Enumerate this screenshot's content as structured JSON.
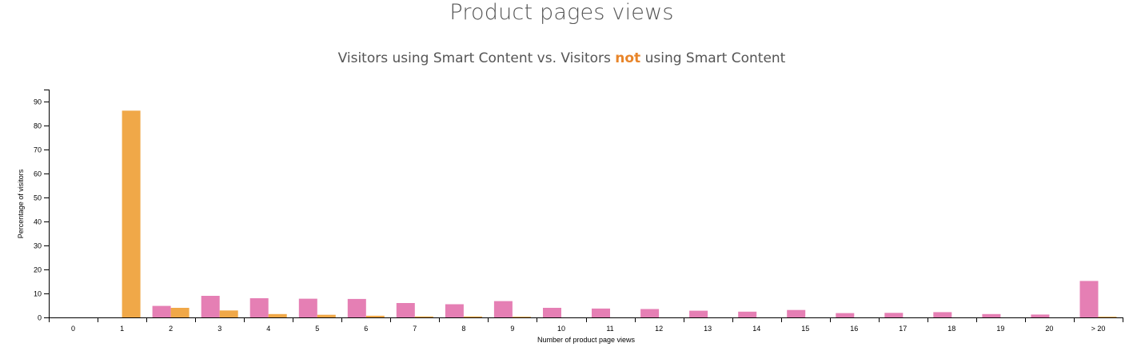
{
  "title": "Product pages views",
  "subtitle": {
    "part1": "Visitors using Smart Content vs. Visitors ",
    "highlight": "not",
    "part2": " using Smart Content"
  },
  "colors": {
    "series_smart": "#e57fb4",
    "series_not": "#f0a848",
    "axis": "#000000",
    "highlight": "#e8852a"
  },
  "chart_data": {
    "type": "bar",
    "xlabel": "Number of product page views",
    "ylabel": "Percentage of visitors",
    "ylim": [
      0,
      95
    ],
    "yticks": [
      0,
      10,
      20,
      30,
      40,
      50,
      60,
      70,
      80,
      90
    ],
    "grid": false,
    "categories": [
      "0",
      "1",
      "2",
      "3",
      "4",
      "5",
      "6",
      "7",
      "8",
      "9",
      "10",
      "11",
      "12",
      "13",
      "14",
      "15",
      "16",
      "17",
      "18",
      "19",
      "20",
      "> 20"
    ],
    "series": [
      {
        "values": [
          0,
          0,
          4.8,
          9.0,
          8.0,
          7.8,
          7.7,
          6.0,
          5.5,
          6.8,
          4.0,
          3.7,
          3.5,
          2.8,
          2.4,
          3.1,
          1.8,
          1.9,
          2.2,
          1.4,
          1.2,
          15.2
        ]
      },
      {
        "values": [
          0,
          86.2,
          4.0,
          2.9,
          1.4,
          1.1,
          0.7,
          0.4,
          0.4,
          0.3,
          0,
          0,
          0,
          0,
          0,
          0,
          0,
          0,
          0,
          0,
          0,
          0.3
        ]
      }
    ]
  }
}
